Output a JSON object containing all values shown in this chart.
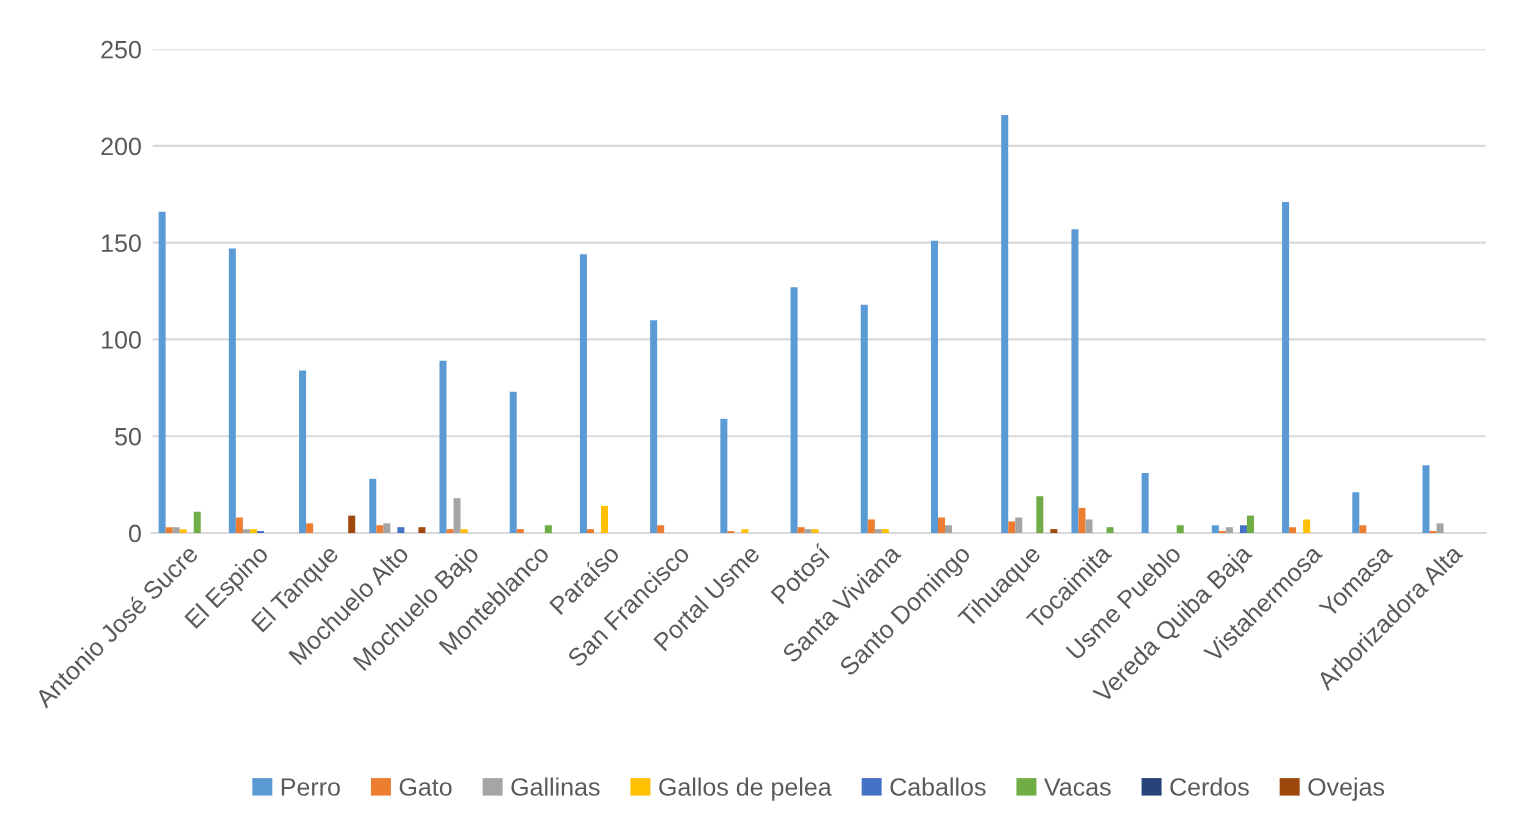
{
  "chart_data": {
    "type": "bar",
    "categories": [
      "Antonio José Sucre",
      "El Espino",
      "El Tanque",
      "Mochuelo Alto",
      "Mochuelo Bajo",
      "Monteblanco",
      "Paraíso",
      "San Francisco",
      "Portal Usme",
      "Potosí",
      "Santa Viviana",
      "Santo Domingo",
      "Tihuaque",
      "Tocaimita",
      "Usme Pueblo",
      "Vereda Quiba Baja",
      "Vistahermosa",
      "Yomasa",
      "Arborizadora Alta"
    ],
    "series": [
      {
        "name": "Perro",
        "color": "#5b9bd5",
        "values": [
          166,
          147,
          84,
          28,
          89,
          73,
          144,
          110,
          59,
          127,
          118,
          151,
          216,
          157,
          31,
          4,
          171,
          21,
          35
        ]
      },
      {
        "name": "Gato",
        "color": "#ed7d31",
        "values": [
          3,
          8,
          5,
          4,
          2,
          2,
          2,
          4,
          1,
          3,
          7,
          8,
          6,
          13,
          0,
          1,
          3,
          4,
          1
        ]
      },
      {
        "name": "Gallinas",
        "color": "#a5a5a5",
        "values": [
          3,
          2,
          0,
          5,
          18,
          null,
          0,
          0,
          0,
          2,
          2,
          4,
          8,
          7,
          0,
          3,
          0,
          0,
          5
        ]
      },
      {
        "name": "Gallos de pelea",
        "color": "#ffc000",
        "values": [
          2,
          2,
          0,
          0,
          2,
          0,
          14,
          0,
          2,
          2,
          2,
          0,
          0,
          0,
          0,
          0,
          7,
          0,
          0
        ]
      },
      {
        "name": "Caballos",
        "color": "#4472c4",
        "values": [
          0,
          1,
          0,
          3,
          0,
          0,
          0,
          0,
          0,
          0,
          0,
          0,
          0,
          0,
          0,
          4,
          0,
          0,
          0
        ]
      },
      {
        "name": "Vacas",
        "color": "#70ad47",
        "values": [
          11,
          0,
          0,
          0,
          0,
          4,
          0,
          0,
          0,
          0,
          0,
          0,
          19,
          3,
          4,
          9,
          0,
          0,
          0
        ]
      },
      {
        "name": "Cerdos",
        "color": "#264478",
        "values": [
          0,
          0,
          0,
          0,
          0,
          0,
          0,
          0,
          0,
          0,
          0,
          0,
          0,
          0,
          0,
          0,
          0,
          0,
          0
        ]
      },
      {
        "name": "Ovejas",
        "color": "#9e480e",
        "values": [
          0,
          0,
          9,
          3,
          0,
          0,
          0,
          0,
          0,
          0,
          0,
          0,
          2,
          0,
          0,
          0,
          0,
          0,
          0
        ]
      }
    ],
    "ylim": [
      0,
      250
    ],
    "yticks": [
      0,
      50,
      100,
      150,
      200,
      250
    ],
    "grid": "y",
    "legend": "bottom"
  }
}
